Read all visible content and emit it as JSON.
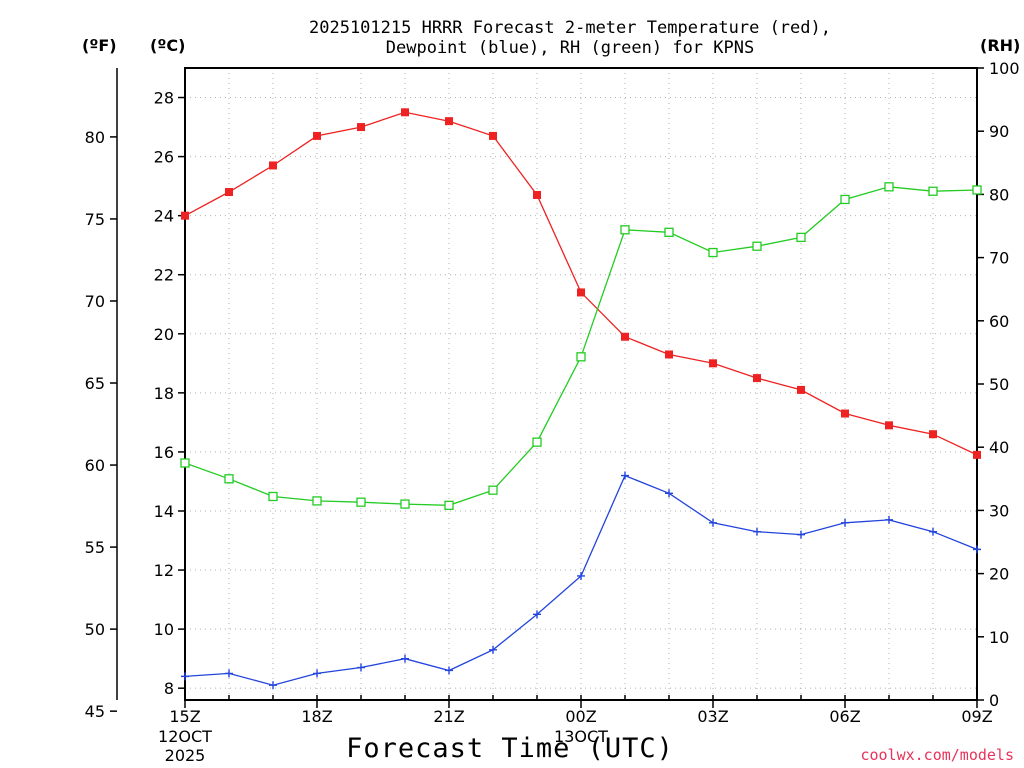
{
  "title_line1": "2025101215 HRRR Forecast 2-meter Temperature (red),",
  "title_line2": "Dewpoint (blue), RH (green) for KPNS",
  "unit_f": "(ºF)",
  "unit_c": "(ºC)",
  "unit_rh": "(RH)",
  "xlabel": "Forecast Time (UTC)",
  "credit": "coolwx.com/models",
  "colors": {
    "temperature": "#ee2222",
    "dewpoint": "#2244dd",
    "rh": "#22cc22"
  },
  "chart_data": {
    "type": "line",
    "title": "2025101215 HRRR Forecast 2-meter Temperature (red), Dewpoint (blue), RH (green) for KPNS",
    "xlabel": "Forecast Time (UTC)",
    "x_hours": [
      0,
      1,
      2,
      3,
      4,
      5,
      6,
      7,
      8,
      9,
      10,
      11,
      12,
      13,
      14,
      15,
      16,
      17,
      18
    ],
    "x_ticks": [
      {
        "hour": 0,
        "label": "15Z",
        "sub1": "12OCT",
        "sub2": "2025"
      },
      {
        "hour": 3,
        "label": "18Z",
        "sub1": "",
        "sub2": ""
      },
      {
        "hour": 6,
        "label": "21Z",
        "sub1": "",
        "sub2": ""
      },
      {
        "hour": 9,
        "label": "00Z",
        "sub1": "13OCT",
        "sub2": ""
      },
      {
        "hour": 12,
        "label": "03Z",
        "sub1": "",
        "sub2": ""
      },
      {
        "hour": 15,
        "label": "06Z",
        "sub1": "",
        "sub2": ""
      },
      {
        "hour": 18,
        "label": "09Z",
        "sub1": "",
        "sub2": ""
      }
    ],
    "xlim": [
      0,
      18
    ],
    "celsius_axis": {
      "ylim": [
        7.6,
        29.0
      ],
      "ticks": [
        8,
        10,
        12,
        14,
        16,
        18,
        20,
        22,
        24,
        26,
        28
      ]
    },
    "fahrenheit_axis": {
      "ylim": [
        45.68,
        84.2
      ],
      "ticks": [
        45,
        50,
        55,
        60,
        65,
        70,
        75,
        80
      ]
    },
    "rh_axis": {
      "ylim": [
        0,
        100
      ],
      "ticks": [
        0,
        10,
        20,
        30,
        40,
        50,
        60,
        70,
        80,
        90,
        100
      ]
    },
    "series": [
      {
        "name": "Temperature",
        "axis": "celsius",
        "marker": "filled-square",
        "color": "#ee2222",
        "values": [
          24.0,
          24.8,
          25.7,
          26.7,
          27.0,
          27.5,
          27.2,
          26.7,
          24.7,
          21.4,
          19.9,
          19.3,
          19.0,
          18.5,
          18.1,
          17.3,
          16.9,
          16.6,
          15.9
        ]
      },
      {
        "name": "Dewpoint",
        "axis": "celsius",
        "marker": "plus",
        "color": "#2244dd",
        "values": [
          8.4,
          8.5,
          8.1,
          8.5,
          8.7,
          9.0,
          8.6,
          9.3,
          10.5,
          11.8,
          15.2,
          14.6,
          13.6,
          13.3,
          13.2,
          13.6,
          13.7,
          13.3,
          12.7
        ]
      },
      {
        "name": "RH",
        "axis": "rh",
        "marker": "open-square",
        "color": "#22cc22",
        "values": [
          37.5,
          35.0,
          32.2,
          31.5,
          31.3,
          31.0,
          30.8,
          33.2,
          40.8,
          54.3,
          74.4,
          74.0,
          70.8,
          71.8,
          73.2,
          79.2,
          81.2,
          80.5,
          80.7
        ]
      }
    ]
  }
}
